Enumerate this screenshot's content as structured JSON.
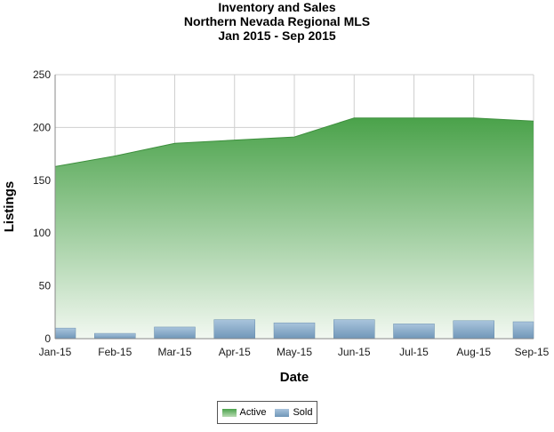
{
  "title": {
    "line1": "Inventory and Sales",
    "line2": "Northern Nevada Regional MLS",
    "line3": "Jan 2015 - Sep 2015"
  },
  "colors": {
    "active_top": "#4aa24a",
    "active_bottom": "#f2f8f1",
    "sold_top": "#a9c4dc",
    "sold_bottom": "#6f96b8",
    "grid": "#cfcfcf"
  },
  "legend": {
    "active_label": "Active",
    "sold_label": "Sold"
  },
  "chart_data": {
    "type": "area",
    "title": "Inventory and Sales Northern Nevada Regional MLS Jan 2015 - Sep 2015",
    "xlabel": "Date",
    "ylabel": "Listings",
    "categories": [
      "Jan-15",
      "Feb-15",
      "Mar-15",
      "Apr-15",
      "May-15",
      "Jun-15",
      "Jul-15",
      "Aug-15",
      "Sep-15"
    ],
    "ylim": [
      0,
      250
    ],
    "yticks": [
      0,
      50,
      100,
      150,
      200,
      250
    ],
    "grid": true,
    "legend_position": "bottom-center",
    "series": [
      {
        "name": "Active",
        "type": "area",
        "values": [
          163,
          173,
          185,
          188,
          191,
          209,
          209,
          209,
          206
        ]
      },
      {
        "name": "Sold",
        "type": "bar",
        "values": [
          10,
          5,
          11,
          18,
          15,
          18,
          14,
          17,
          16
        ]
      }
    ]
  }
}
